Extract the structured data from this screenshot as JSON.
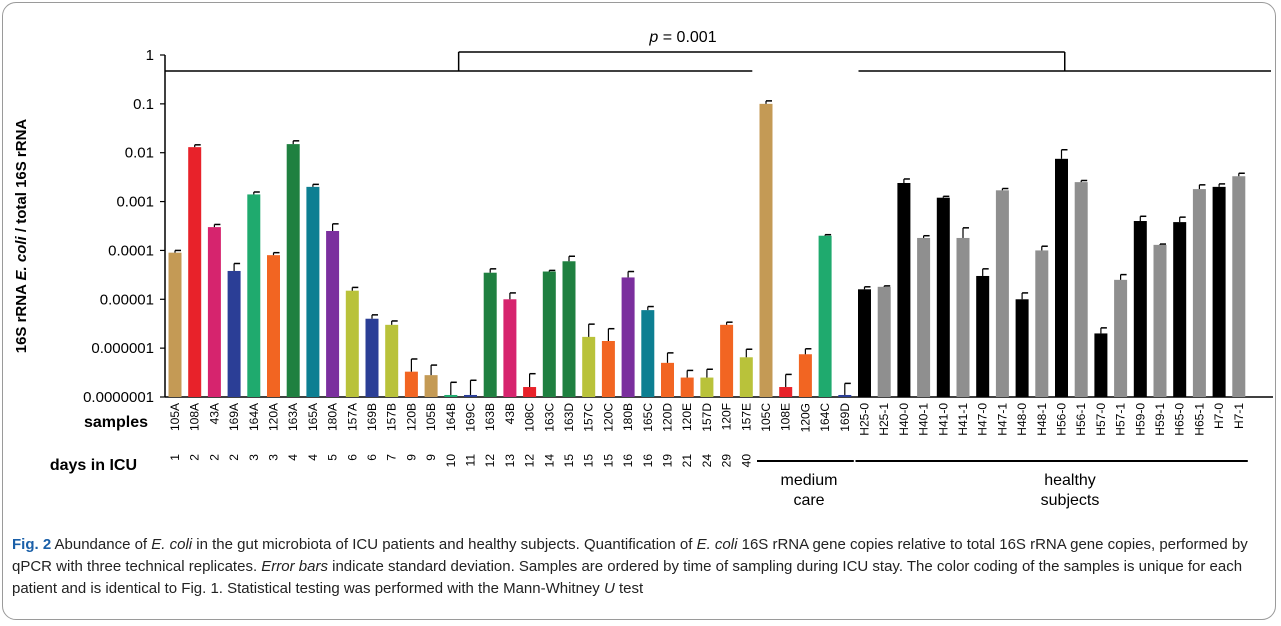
{
  "chart_data": {
    "type": "bar",
    "ylabel_parts": [
      "16S rRNA ",
      "E. coli",
      " / total 16S rRNA"
    ],
    "y_scale": "log",
    "ylim": [
      1e-07,
      1
    ],
    "y_ticks": [
      {
        "value": 1,
        "label": "1"
      },
      {
        "value": 0.1,
        "label": "0.1"
      },
      {
        "value": 0.01,
        "label": "0.01"
      },
      {
        "value": 0.001,
        "label": "0.001"
      },
      {
        "value": 0.0001,
        "label": "0.0001"
      },
      {
        "value": 1e-05,
        "label": "0.00001"
      },
      {
        "value": 1e-06,
        "label": "0.000001"
      },
      {
        "value": 1e-07,
        "label": "0.0000001"
      }
    ],
    "row_labels": {
      "samples": "samples",
      "days": "days in ICU"
    },
    "group_labels": {
      "medium": [
        "medium",
        "care"
      ],
      "healthy": [
        "healthy",
        "subjects"
      ]
    },
    "p_value_label": {
      "p": "p",
      "rest": " = 0.001"
    },
    "bars": [
      {
        "sample": "105A",
        "day": "1",
        "value": 9e-05,
        "err": 1e-05,
        "color": "#c49a55"
      },
      {
        "sample": "108A",
        "day": "2",
        "value": 0.013,
        "err": 0.0015,
        "color": "#e8222a"
      },
      {
        "sample": "43A",
        "day": "2",
        "value": 0.0003,
        "err": 4e-05,
        "color": "#d6246e"
      },
      {
        "sample": "169A",
        "day": "2",
        "value": 3.8e-05,
        "err": 1.6e-05,
        "color": "#2b3e96"
      },
      {
        "sample": "164A",
        "day": "3",
        "value": 0.0014,
        "err": 0.00017,
        "color": "#1faa6e"
      },
      {
        "sample": "120A",
        "day": "3",
        "value": 8e-05,
        "err": 1e-05,
        "color": "#f26522"
      },
      {
        "sample": "163A",
        "day": "4",
        "value": 0.015,
        "err": 0.0025,
        "color": "#1f8040"
      },
      {
        "sample": "165A",
        "day": "4",
        "value": 0.002,
        "err": 0.00025,
        "color": "#0d7f92"
      },
      {
        "sample": "180A",
        "day": "5",
        "value": 0.00025,
        "err": 0.0001,
        "color": "#7b2f9e"
      },
      {
        "sample": "157A",
        "day": "6",
        "value": 1.5e-05,
        "err": 2.5e-06,
        "color": "#b9c23a"
      },
      {
        "sample": "169B",
        "day": "6",
        "value": 4e-06,
        "err": 8e-07,
        "color": "#2b3e96"
      },
      {
        "sample": "157B",
        "day": "7",
        "value": 3e-06,
        "err": 6e-07,
        "color": "#b9c23a"
      },
      {
        "sample": "120B",
        "day": "9",
        "value": 3.3e-07,
        "err": 2.7e-07,
        "color": "#f26522"
      },
      {
        "sample": "105B",
        "day": "9",
        "value": 2.8e-07,
        "err": 1.7e-07,
        "color": "#c49a55"
      },
      {
        "sample": "164B",
        "day": "10",
        "value": 1.1e-07,
        "err": 9e-08,
        "color": "#1faa6e"
      },
      {
        "sample": "169C",
        "day": "11",
        "value": 1.1e-07,
        "err": 1.1e-07,
        "color": "#2b3e96"
      },
      {
        "sample": "163B",
        "day": "12",
        "value": 3.5e-05,
        "err": 7e-06,
        "color": "#1f8040"
      },
      {
        "sample": "43B",
        "day": "13",
        "value": 1e-05,
        "err": 3.5e-06,
        "color": "#d6246e"
      },
      {
        "sample": "108C",
        "day": "12",
        "value": 1.6e-07,
        "err": 1.4e-07,
        "color": "#e8222a"
      },
      {
        "sample": "163C",
        "day": "14",
        "value": 3.7e-05,
        "err": 2e-06,
        "color": "#1f8040"
      },
      {
        "sample": "163D",
        "day": "15",
        "value": 6e-05,
        "err": 1.6e-05,
        "color": "#1f8040"
      },
      {
        "sample": "157C",
        "day": "15",
        "value": 1.7e-06,
        "err": 1.4e-06,
        "color": "#b9c23a"
      },
      {
        "sample": "120C",
        "day": "15",
        "value": 1.4e-06,
        "err": 1.1e-06,
        "color": "#f26522"
      },
      {
        "sample": "180B",
        "day": "16",
        "value": 2.8e-05,
        "err": 9e-06,
        "color": "#7b2f9e"
      },
      {
        "sample": "165C",
        "day": "16",
        "value": 6e-06,
        "err": 1.1e-06,
        "color": "#0d7f92"
      },
      {
        "sample": "120D",
        "day": "19",
        "value": 5e-07,
        "err": 3e-07,
        "color": "#f26522"
      },
      {
        "sample": "120E",
        "day": "21",
        "value": 2.5e-07,
        "err": 1e-07,
        "color": "#f26522"
      },
      {
        "sample": "157D",
        "day": "24",
        "value": 2.5e-07,
        "err": 1.2e-07,
        "color": "#b9c23a"
      },
      {
        "sample": "120F",
        "day": "29",
        "value": 3e-06,
        "err": 4e-07,
        "color": "#f26522"
      },
      {
        "sample": "157E",
        "day": "40",
        "value": 6.5e-07,
        "err": 3e-07,
        "color": "#b9c23a"
      },
      {
        "sample": "105C",
        "day": "",
        "value": 0.1,
        "err": 0.015,
        "color": "#c49a55"
      },
      {
        "sample": "108E",
        "day": "",
        "value": 1.6e-07,
        "err": 1.3e-07,
        "color": "#e8222a"
      },
      {
        "sample": "120G",
        "day": "",
        "value": 7.5e-07,
        "err": 2.2e-07,
        "color": "#f26522"
      },
      {
        "sample": "164C",
        "day": "",
        "value": 0.0002,
        "err": 1e-05,
        "color": "#1faa6e"
      },
      {
        "sample": "169D",
        "day": "",
        "value": 1.1e-07,
        "err": 8e-08,
        "color": "#2b3e96"
      },
      {
        "sample": "H25-0",
        "day": "",
        "value": 1.6e-05,
        "err": 2e-06,
        "color": "#000000"
      },
      {
        "sample": "H25-1",
        "day": "",
        "value": 1.8e-05,
        "err": 8e-07,
        "color": "#8f8f8f"
      },
      {
        "sample": "H40-0",
        "day": "",
        "value": 0.0024,
        "err": 0.0005,
        "color": "#000000"
      },
      {
        "sample": "H40-1",
        "day": "",
        "value": 0.00018,
        "err": 2e-05,
        "color": "#8f8f8f"
      },
      {
        "sample": "H41-0",
        "day": "",
        "value": 0.0012,
        "err": 8e-05,
        "color": "#000000"
      },
      {
        "sample": "H41-1",
        "day": "",
        "value": 0.00018,
        "err": 0.00011,
        "color": "#8f8f8f"
      },
      {
        "sample": "H47-0",
        "day": "",
        "value": 3e-05,
        "err": 1.2e-05,
        "color": "#000000"
      },
      {
        "sample": "H47-1",
        "day": "",
        "value": 0.0017,
        "err": 0.00015,
        "color": "#8f8f8f"
      },
      {
        "sample": "H48-0",
        "day": "",
        "value": 1e-05,
        "err": 3.5e-06,
        "color": "#000000"
      },
      {
        "sample": "H48-1",
        "day": "",
        "value": 0.0001,
        "err": 2.2e-05,
        "color": "#8f8f8f"
      },
      {
        "sample": "H56-0",
        "day": "",
        "value": 0.0075,
        "err": 0.004,
        "color": "#000000"
      },
      {
        "sample": "H56-1",
        "day": "",
        "value": 0.0025,
        "err": 0.0002,
        "color": "#8f8f8f"
      },
      {
        "sample": "H57-0",
        "day": "",
        "value": 2e-06,
        "err": 6e-07,
        "color": "#000000"
      },
      {
        "sample": "H57-1",
        "day": "",
        "value": 2.5e-05,
        "err": 7e-06,
        "color": "#8f8f8f"
      },
      {
        "sample": "H59-0",
        "day": "",
        "value": 0.0004,
        "err": 0.0001,
        "color": "#000000"
      },
      {
        "sample": "H59-1",
        "day": "",
        "value": 0.00013,
        "err": 5e-06,
        "color": "#8f8f8f"
      },
      {
        "sample": "H65-0",
        "day": "",
        "value": 0.00038,
        "err": 0.0001,
        "color": "#000000"
      },
      {
        "sample": "H65-1",
        "day": "",
        "value": 0.0018,
        "err": 0.0004,
        "color": "#8f8f8f"
      },
      {
        "sample": "H7-0",
        "day": "",
        "value": 0.002,
        "err": 0.0003,
        "color": "#000000"
      },
      {
        "sample": "H7-1",
        "day": "",
        "value": 0.0033,
        "err": 0.0005,
        "color": "#8f8f8f"
      }
    ]
  },
  "caption": {
    "lead": "Fig. 2",
    "segments": [
      {
        "t": " Abundance of ",
        "i": false
      },
      {
        "t": "E. coli",
        "i": true
      },
      {
        "t": " in the gut microbiota of ICU patients and healthy subjects. Quantification of ",
        "i": false
      },
      {
        "t": "E. coli",
        "i": true
      },
      {
        "t": " 16S rRNA gene copies relative to total 16S rRNA gene copies, performed by qPCR with three technical replicates. ",
        "i": false
      },
      {
        "t": "Error bars",
        "i": true
      },
      {
        "t": " indicate standard deviation. Samples are ordered by time of sampling during ICU stay. The color coding of the samples is unique for each patient and is identical to Fig. 1. Statistical testing was performed with the Mann-Whitney ",
        "i": false
      },
      {
        "t": "U",
        "i": true
      },
      {
        "t": " test",
        "i": false
      }
    ]
  },
  "colors": {
    "frame": "#9a9a9a",
    "caption_lead": "#1a5fa8"
  }
}
